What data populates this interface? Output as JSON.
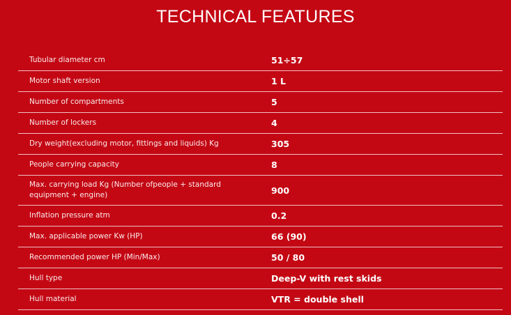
{
  "title": "TECHNICAL FEATURES",
  "rows": [
    {
      "label": "Tubular diameter cm",
      "value": "51÷57"
    },
    {
      "label": "Motor shaft version",
      "value": "1 L"
    },
    {
      "label": "Number of compartments",
      "value": "5"
    },
    {
      "label": "Number of lockers",
      "value": "4"
    },
    {
      "label": "Dry weight(excluding motor, fittings and liquids) Kg",
      "value": "305"
    },
    {
      "label": "People carrying capacity",
      "value": "8"
    },
    {
      "label": "Max. carrying load Kg (Number ofpeople + standard equipment + engine)",
      "value": "900"
    },
    {
      "label": "Inflation pressure atm",
      "value": "0.2"
    },
    {
      "label": "Max. applicable power Kw (HP)",
      "value": "66 (90)"
    },
    {
      "label": "Recommended power HP (Min/Max)",
      "value": "50 / 80"
    },
    {
      "label": "Hull type",
      "value": "Deep-V with rest skids"
    },
    {
      "label": "Hull material",
      "value": "VTR = double shell"
    }
  ]
}
